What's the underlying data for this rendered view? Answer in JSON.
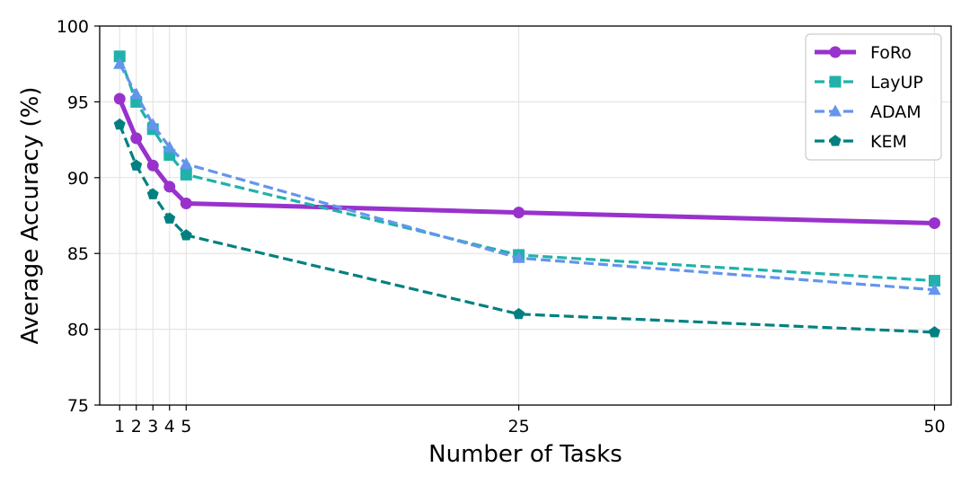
{
  "chart_data": {
    "type": "line",
    "xlabel": "Number of Tasks",
    "ylabel": "Average Accuracy (%)",
    "ylim": [
      75,
      100
    ],
    "y_ticks": [
      75,
      80,
      85,
      90,
      95,
      100
    ],
    "x_ticks": [
      1,
      2,
      3,
      4,
      5,
      25,
      50
    ],
    "grid": true,
    "legend_position": "top-right",
    "series": [
      {
        "name": "FoRo",
        "color": "#9932cc",
        "marker": "circle",
        "linestyle": "solid",
        "x": [
          1,
          2,
          3,
          4,
          5,
          25,
          50
        ],
        "values": [
          95.2,
          92.6,
          90.8,
          89.4,
          88.3,
          87.7,
          87.0
        ]
      },
      {
        "name": "LayUP",
        "color": "#20b2aa",
        "marker": "square",
        "linestyle": "dashed",
        "x": [
          1,
          2,
          3,
          4,
          5,
          25,
          50
        ],
        "values": [
          98.0,
          95.0,
          93.2,
          91.5,
          90.2,
          84.9,
          83.2
        ]
      },
      {
        "name": "ADAM",
        "color": "#6495ed",
        "marker": "triangle",
        "linestyle": "dashed",
        "x": [
          1,
          2,
          3,
          4,
          5,
          25,
          50
        ],
        "values": [
          97.5,
          95.5,
          93.5,
          92.0,
          90.9,
          84.7,
          82.6
        ]
      },
      {
        "name": "KEM",
        "color": "#008080",
        "marker": "pentagon",
        "linestyle": "dashed",
        "x": [
          1,
          2,
          3,
          4,
          5,
          25,
          50
        ],
        "values": [
          93.5,
          90.8,
          88.9,
          87.3,
          86.2,
          81.0,
          79.8
        ]
      }
    ]
  }
}
